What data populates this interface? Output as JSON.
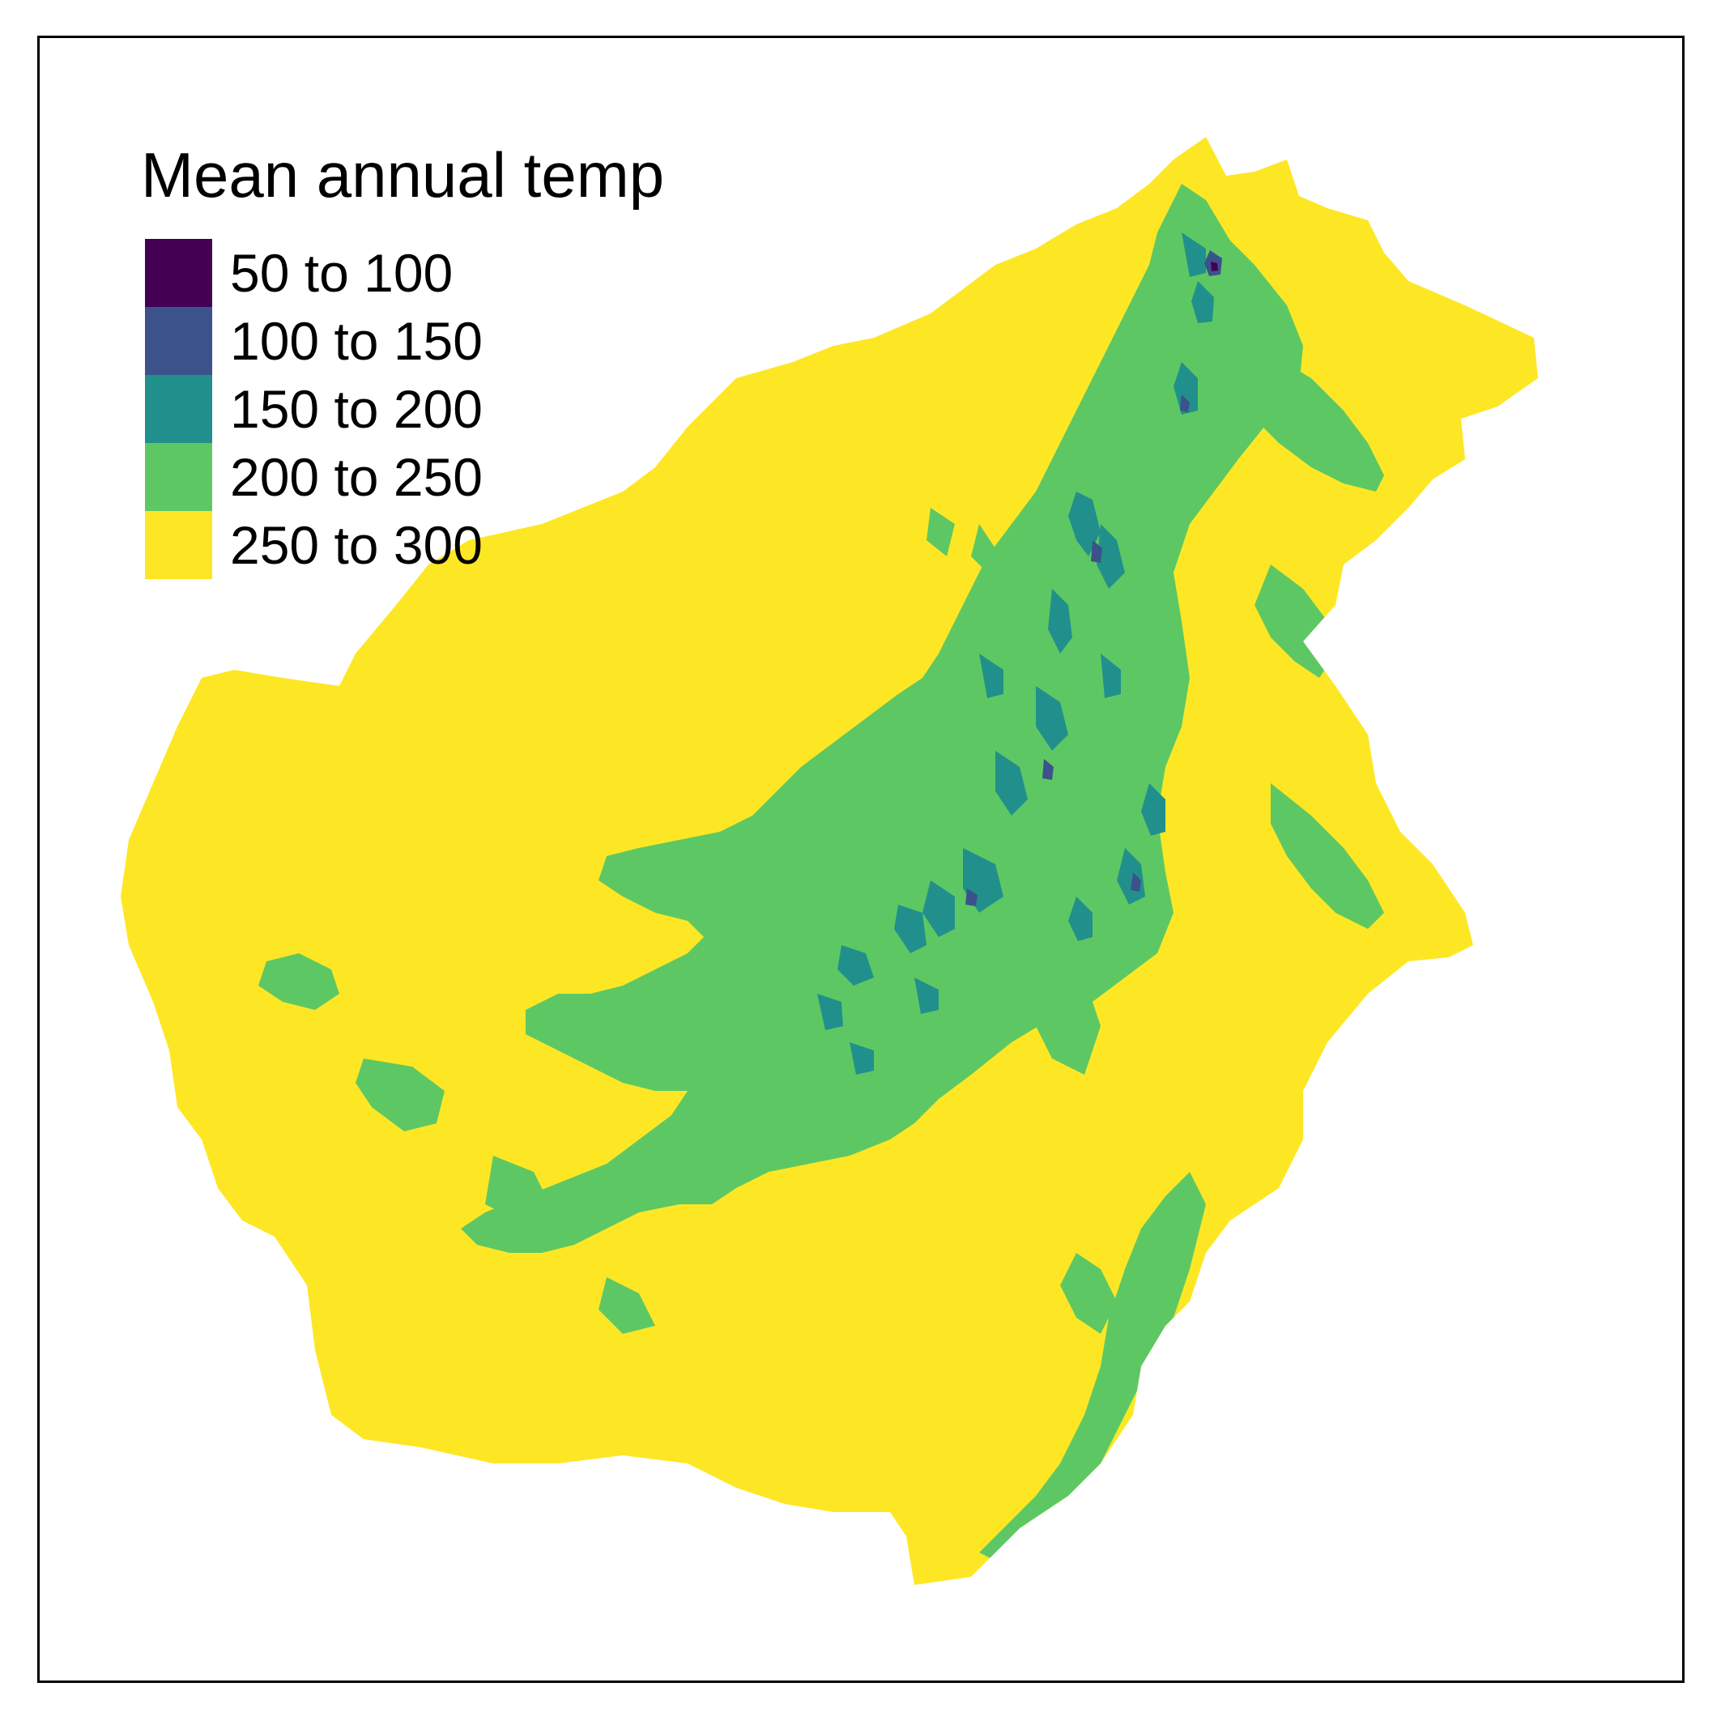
{
  "legend": {
    "title": "Mean annual temp",
    "items": [
      {
        "label": "50 to 100",
        "color": "#440154"
      },
      {
        "label": "100 to 150",
        "color": "#3b528b"
      },
      {
        "label": "150 to 200",
        "color": "#21908c"
      },
      {
        "label": "200 to 250",
        "color": "#5dc863"
      },
      {
        "label": "250 to 300",
        "color": "#fde725"
      }
    ]
  },
  "map": {
    "region": "Borneo",
    "background": "#ffffff",
    "frame_color": "#000000"
  }
}
